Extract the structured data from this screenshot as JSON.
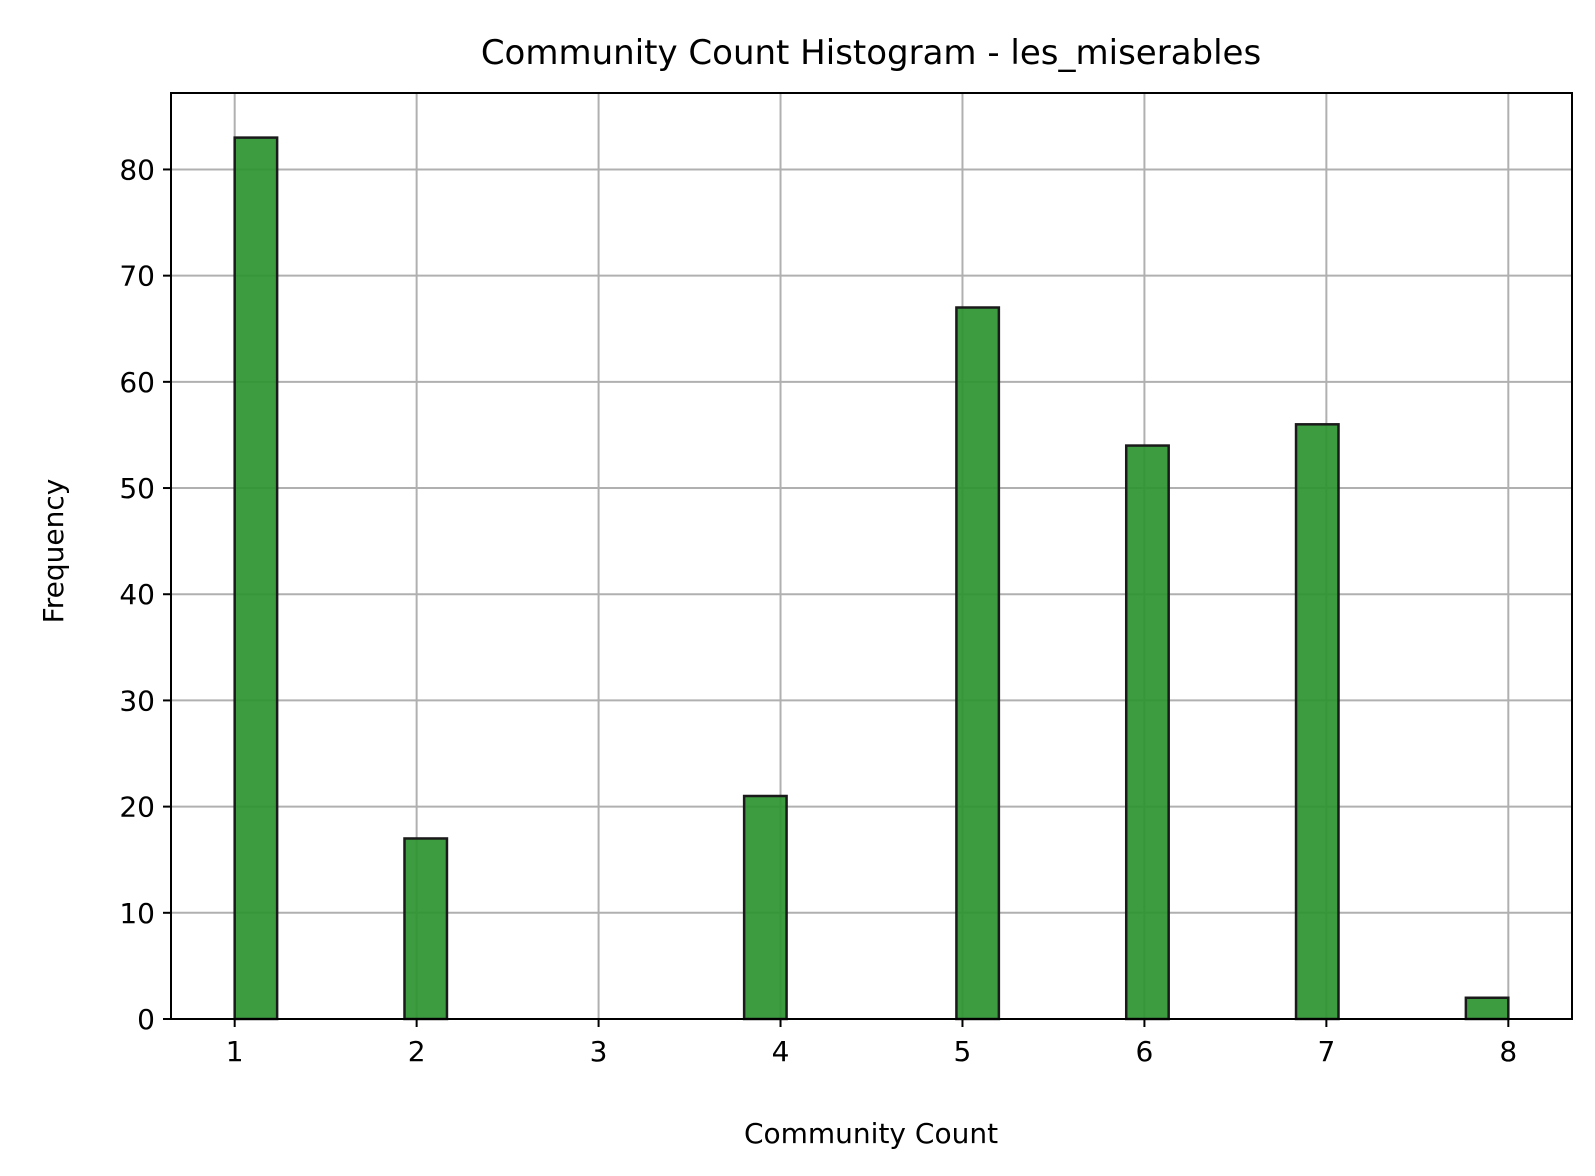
{
  "chart_data": {
    "type": "bar",
    "title": "Community Count Histogram - les_miserables",
    "xlabel": "Community Count",
    "ylabel": "Frequency",
    "xlim": [
      0.65,
      8.35
    ],
    "ylim": [
      0,
      87.2
    ],
    "x_ticks": [
      1,
      2,
      3,
      4,
      5,
      6,
      7,
      8
    ],
    "y_ticks": [
      0,
      10,
      20,
      30,
      40,
      50,
      60,
      70,
      80
    ],
    "bin_width": 0.2333,
    "bins": [
      {
        "x0": 1.0,
        "x1": 1.2333,
        "value": 83
      },
      {
        "x0": 1.9333,
        "x1": 2.1667,
        "value": 17
      },
      {
        "x0": 3.8,
        "x1": 4.0333,
        "value": 21
      },
      {
        "x0": 4.9667,
        "x1": 5.2,
        "value": 67
      },
      {
        "x0": 5.9,
        "x1": 6.1333,
        "value": 54
      },
      {
        "x0": 6.8333,
        "x1": 7.0667,
        "value": 56
      },
      {
        "x0": 7.7667,
        "x1": 8.0,
        "value": 2
      }
    ],
    "grid": true,
    "colors": {
      "bar_fill": "#2e9430",
      "bar_edge": "#1a1a1a",
      "grid": "#b0b0b0",
      "axis": "#000000"
    }
  }
}
